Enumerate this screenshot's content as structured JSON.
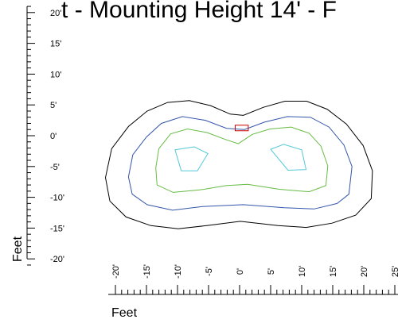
{
  "chart_data": {
    "type": "contour",
    "title": "t - Mounting Height 14' - F",
    "xlabel": "Feet",
    "ylabel": "Feet",
    "x_tick_labels": [
      "-20'",
      "-15'",
      "-10'",
      "-5'",
      "0'",
      "5'",
      "10'",
      "15'",
      "20'",
      "25'"
    ],
    "x_ticks": [
      -20,
      -15,
      -10,
      -5,
      0,
      5,
      10,
      15,
      20,
      25
    ],
    "y_tick_labels": [
      "20'",
      "15'",
      "10'",
      "5'",
      "0'",
      "-5'",
      "-10'",
      "-15'",
      "-20'"
    ],
    "y_ticks": [
      20,
      15,
      10,
      5,
      0,
      -5,
      -10,
      -15,
      -20
    ],
    "xlim": [
      -21.5,
      26
    ],
    "ylim": [
      -21,
      21
    ],
    "grid": false,
    "contours": [
      {
        "color": "#000000",
        "points": [
          [
            -21.6,
            -6.8
          ],
          [
            -20.6,
            -2.1
          ],
          [
            -17.9,
            1.5
          ],
          [
            -14.9,
            4.0
          ],
          [
            -11.6,
            5.4
          ],
          [
            -8.1,
            5.7
          ],
          [
            -4.7,
            4.9
          ],
          [
            -1.5,
            3.5
          ],
          [
            0.6,
            3.3
          ],
          [
            3.8,
            4.6
          ],
          [
            7.3,
            5.6
          ],
          [
            10.8,
            5.6
          ],
          [
            14.1,
            4.3
          ],
          [
            17.2,
            1.9
          ],
          [
            19.9,
            -1.6
          ],
          [
            21.4,
            -5.7
          ],
          [
            21.2,
            -10.2
          ],
          [
            18.7,
            -12.9
          ],
          [
            14.9,
            -14.2
          ],
          [
            10.7,
            -14.9
          ],
          [
            6.2,
            -14.6
          ],
          [
            0.1,
            -13.9
          ],
          [
            -5.3,
            -14.6
          ],
          [
            -9.9,
            -15.1
          ],
          [
            -14.3,
            -14.6
          ],
          [
            -18.3,
            -13.2
          ],
          [
            -20.9,
            -10.6
          ]
        ]
      },
      {
        "color": "#3355aa",
        "points": [
          [
            -17.9,
            -6.7
          ],
          [
            -17.2,
            -3.1
          ],
          [
            -15.0,
            -0.2
          ],
          [
            -12.6,
            2.0
          ],
          [
            -9.2,
            3.1
          ],
          [
            -5.5,
            2.5
          ],
          [
            -2.1,
            1.2
          ],
          [
            0.8,
            1.0
          ],
          [
            4.0,
            2.2
          ],
          [
            7.7,
            3.1
          ],
          [
            11.4,
            3.0
          ],
          [
            14.4,
            1.4
          ],
          [
            16.8,
            -1.5
          ],
          [
            18.1,
            -5.0
          ],
          [
            17.6,
            -9.5
          ],
          [
            15.7,
            -11.0
          ],
          [
            12.0,
            -11.9
          ],
          [
            7.2,
            -11.7
          ],
          [
            0.6,
            -11.2
          ],
          [
            -6.0,
            -11.5
          ],
          [
            -10.8,
            -12.1
          ],
          [
            -14.9,
            -11.2
          ],
          [
            -17.3,
            -9.5
          ]
        ]
      },
      {
        "color": "#66bb44",
        "points": [
          [
            -13.5,
            -5.2
          ],
          [
            -13.0,
            -2.1
          ],
          [
            -11.1,
            0.3
          ],
          [
            -8.4,
            1.1
          ],
          [
            -5.2,
            0.5
          ],
          [
            -2.3,
            -0.6
          ],
          [
            -0.2,
            -1.3
          ],
          [
            2.0,
            0.2
          ],
          [
            4.9,
            1.1
          ],
          [
            8.3,
            1.4
          ],
          [
            11.2,
            0.4
          ],
          [
            13.1,
            -1.7
          ],
          [
            14.2,
            -4.9
          ],
          [
            13.9,
            -8.1
          ],
          [
            11.2,
            -9.1
          ],
          [
            6.4,
            -8.7
          ],
          [
            1.3,
            -7.9
          ],
          [
            -2.2,
            -8.1
          ],
          [
            -6.4,
            -8.8
          ],
          [
            -10.7,
            -9.2
          ],
          [
            -13.3,
            -8.0
          ]
        ]
      },
      {
        "color": "#55c8d8",
        "points": [
          [
            -10.4,
            -2.3
          ],
          [
            -7.3,
            -1.8
          ],
          [
            -5.1,
            -2.9
          ],
          [
            -6.8,
            -5.7
          ],
          [
            -9.4,
            -5.7
          ]
        ]
      },
      {
        "color": "#55c8d8",
        "points": [
          [
            5.0,
            -2.2
          ],
          [
            7.1,
            -1.4
          ],
          [
            10.0,
            -2.3
          ],
          [
            10.7,
            -5.5
          ],
          [
            7.8,
            -5.6
          ]
        ]
      },
      {
        "color": "#cc0000",
        "points": [
          [
            -0.7,
            1.7
          ],
          [
            1.4,
            1.7
          ],
          [
            1.4,
            0.8
          ],
          [
            -0.7,
            0.8
          ]
        ]
      }
    ]
  }
}
